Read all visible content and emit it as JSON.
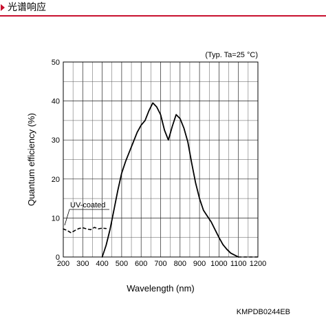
{
  "header": {
    "title": "光谱响应",
    "accent_color": "#c8102e"
  },
  "chart_data": {
    "type": "line",
    "title": "",
    "condition_note": "(Typ. Ta=25 °C)",
    "xlabel": "Wavelength (nm)",
    "ylabel": "Quantum efficiency (%)",
    "xlim": [
      200,
      1200
    ],
    "ylim": [
      0,
      50
    ],
    "xticks": [
      200,
      300,
      400,
      500,
      600,
      700,
      800,
      900,
      1000,
      1100,
      1200
    ],
    "yticks": [
      0,
      10,
      20,
      30,
      40,
      50
    ],
    "grid": true,
    "series": [
      {
        "style": "solid",
        "points": [
          [
            400,
            0
          ],
          [
            420,
            3
          ],
          [
            440,
            7
          ],
          [
            460,
            12
          ],
          [
            480,
            17
          ],
          [
            500,
            21.5
          ],
          [
            520,
            24.5
          ],
          [
            540,
            27
          ],
          [
            560,
            29.5
          ],
          [
            580,
            32
          ],
          [
            600,
            33.8
          ],
          [
            620,
            35
          ],
          [
            640,
            37.5
          ],
          [
            660,
            39.5
          ],
          [
            680,
            38.5
          ],
          [
            700,
            36.5
          ],
          [
            720,
            32.5
          ],
          [
            740,
            30
          ],
          [
            760,
            33.5
          ],
          [
            780,
            36.5
          ],
          [
            800,
            35.5
          ],
          [
            820,
            33
          ],
          [
            840,
            29.5
          ],
          [
            860,
            24
          ],
          [
            880,
            19
          ],
          [
            900,
            15
          ],
          [
            920,
            12
          ],
          [
            940,
            10.5
          ],
          [
            960,
            9
          ],
          [
            980,
            7
          ],
          [
            1000,
            5
          ],
          [
            1020,
            3.2
          ],
          [
            1040,
            2
          ],
          [
            1060,
            1
          ],
          [
            1080,
            0.5
          ],
          [
            1100,
            0
          ]
        ]
      },
      {
        "name": "UV-coated",
        "style": "dashed",
        "points": [
          [
            200,
            7.2
          ],
          [
            220,
            6.8
          ],
          [
            240,
            6.2
          ],
          [
            260,
            6.8
          ],
          [
            280,
            7.3
          ],
          [
            300,
            7.5
          ],
          [
            320,
            7.2
          ],
          [
            340,
            7
          ],
          [
            360,
            7.6
          ],
          [
            380,
            7.2
          ],
          [
            400,
            7.4
          ],
          [
            420,
            7.3
          ]
        ]
      },
      {
        "style": "dashed",
        "points": [
          [
            1100,
            0
          ],
          [
            1150,
            0
          ],
          [
            1200,
            0
          ]
        ]
      }
    ]
  },
  "diagram_code": "KMPDB0244EB"
}
